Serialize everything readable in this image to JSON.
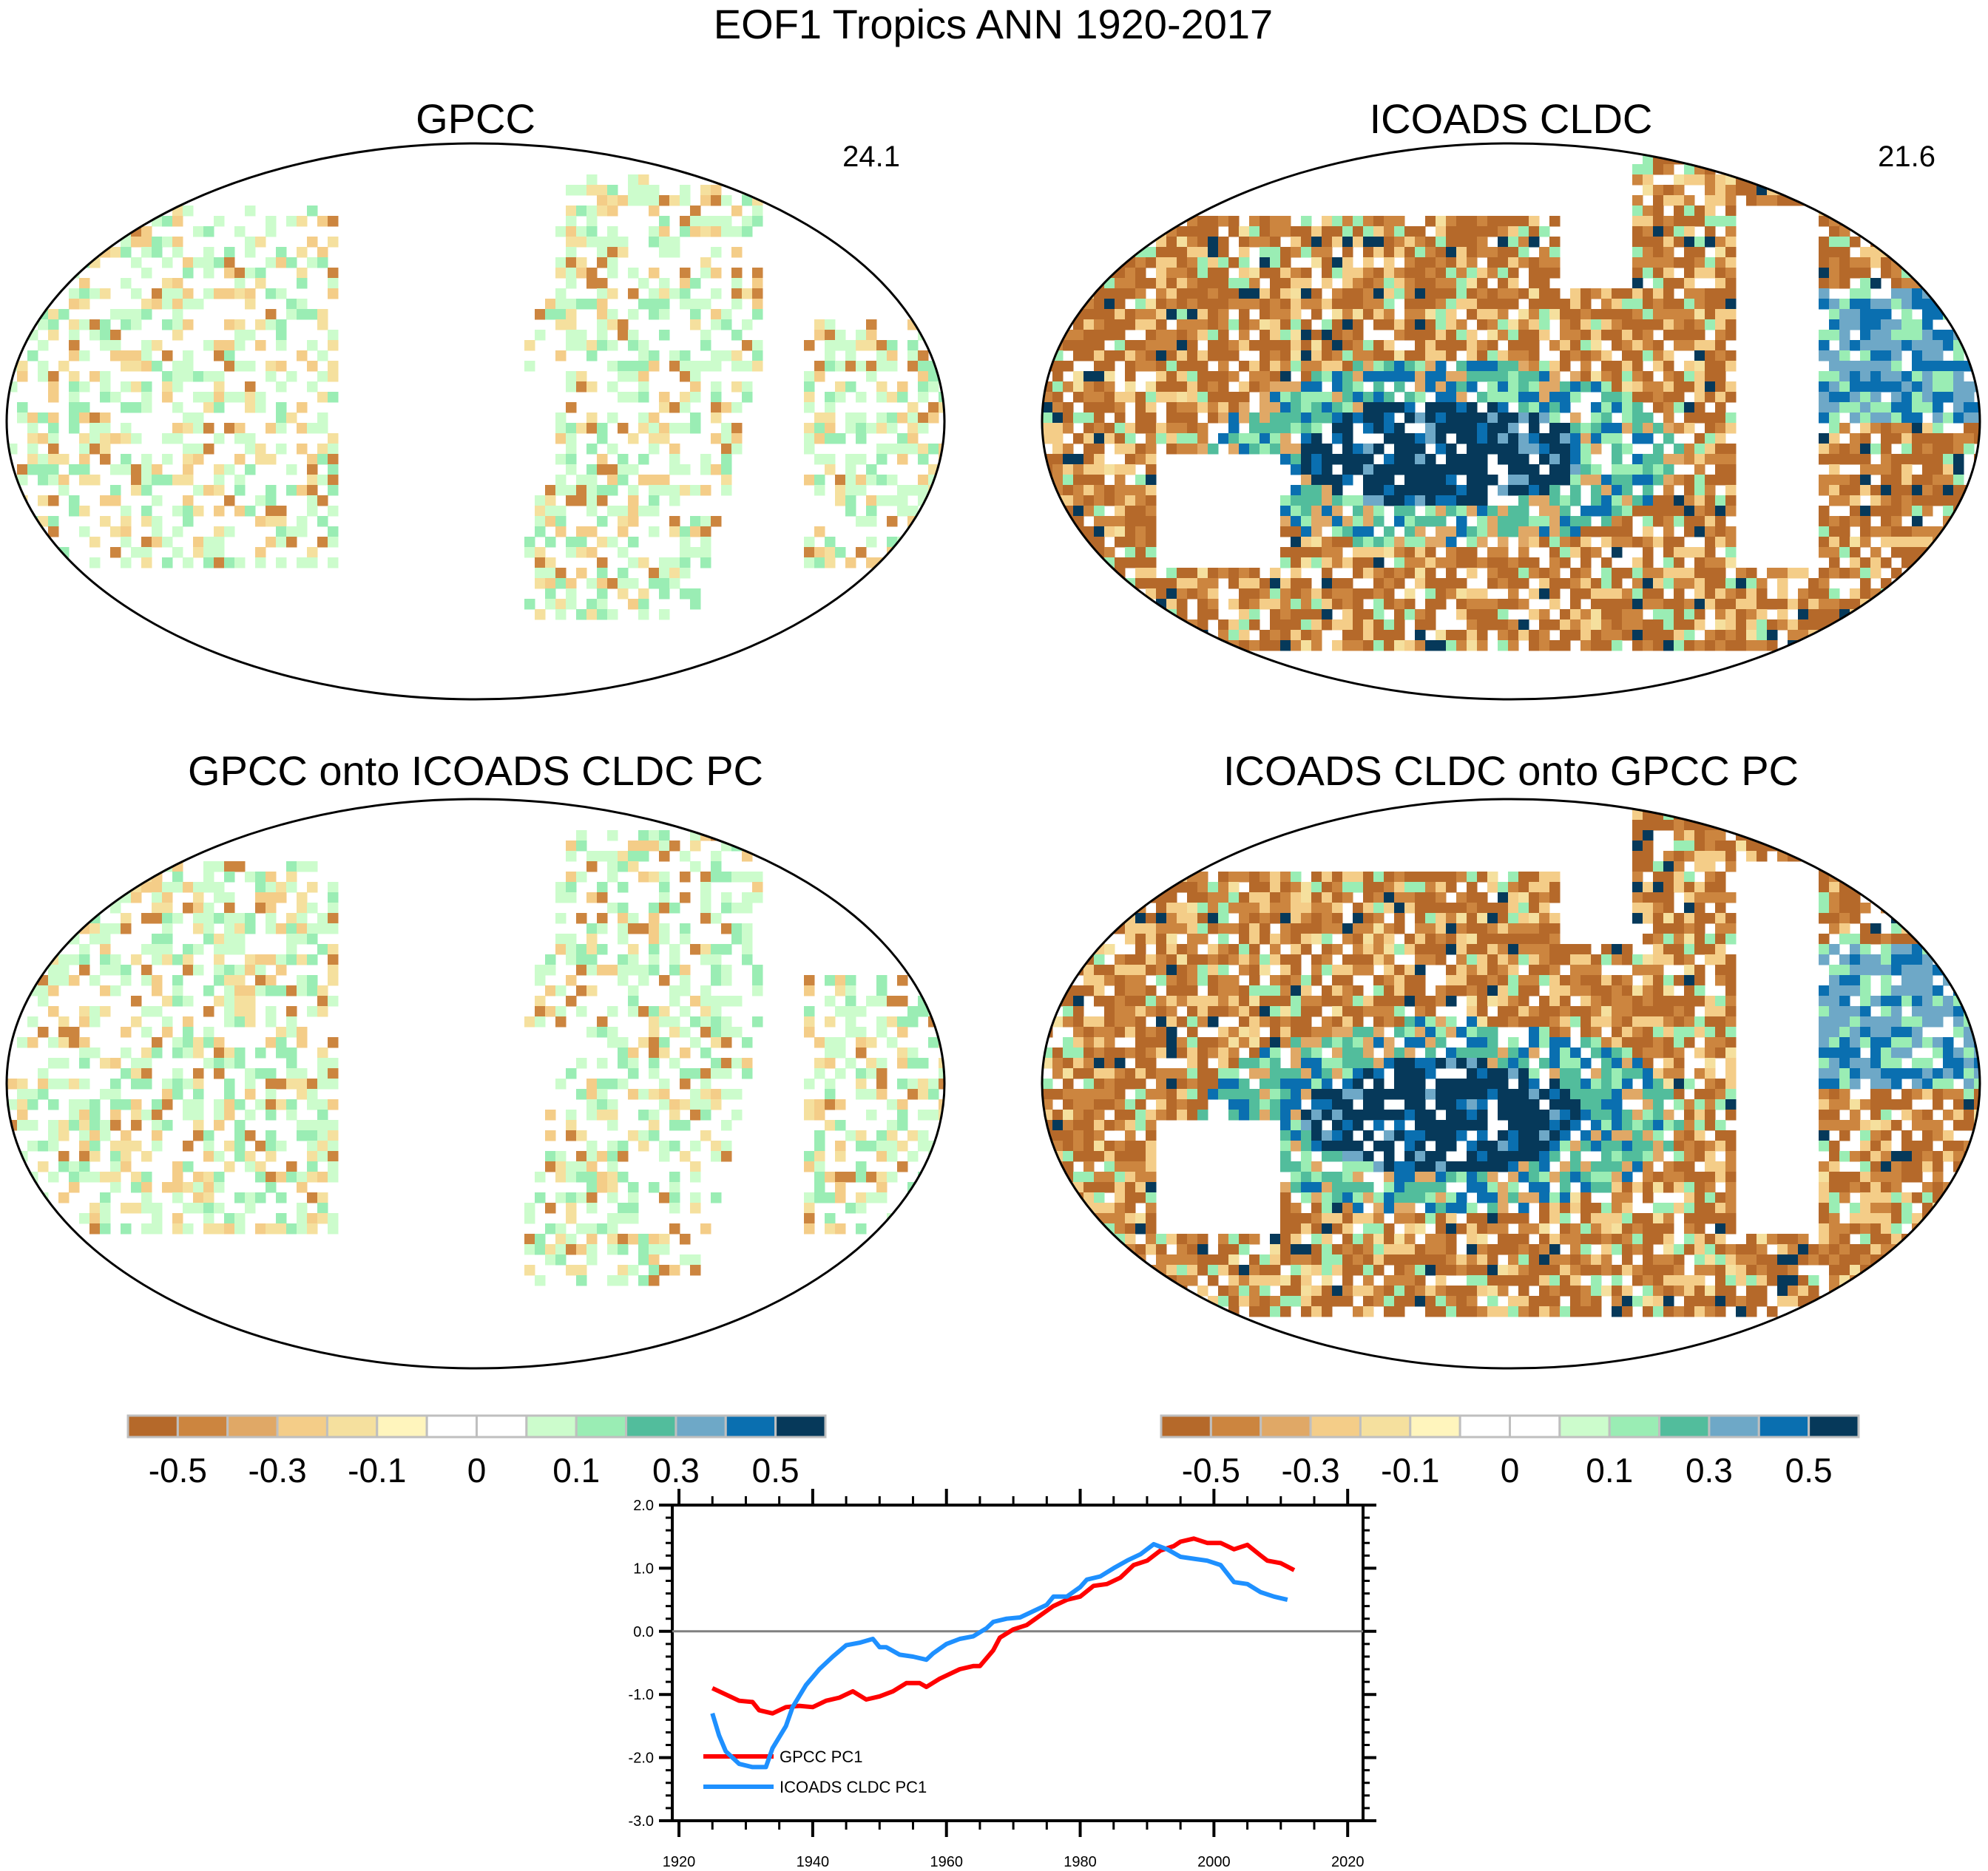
{
  "title": "EOF1 Tropics ANN 1920-2017",
  "panels": [
    {
      "title": "GPCC",
      "pct": "24.1",
      "kind": "land"
    },
    {
      "title": "ICOADS CLDC",
      "pct": "21.6",
      "kind": "ocean"
    },
    {
      "title": "GPCC onto ICOADS CLDC PC",
      "pct": "",
      "kind": "land"
    },
    {
      "title": "ICOADS CLDC onto GPCC PC",
      "pct": "",
      "kind": "ocean"
    }
  ],
  "colorbar": {
    "colors": [
      "#b5692a",
      "#cc853f",
      "#e0a866",
      "#f4cd88",
      "#f5e09e",
      "#fff5bd",
      "#ffffff",
      "#ffffff",
      "#ccfccc",
      "#9aedb4",
      "#52bd9c",
      "#6ea8c7",
      "#0a6fb0",
      "#06395a"
    ],
    "labels": [
      "-0.5",
      "-0.3",
      "-0.1",
      "0",
      "0.1",
      "0.3",
      "0.5"
    ]
  },
  "chart_data": {
    "type": "line",
    "title": "",
    "xlabel": "",
    "ylabel": "",
    "xlim": [
      1919,
      2022.3
    ],
    "ylim": [
      -3.0,
      2.0
    ],
    "xticks": [
      "1920",
      "1940",
      "1960",
      "1980",
      "2000",
      "2020"
    ],
    "yticks": [
      "2.0",
      "1.0",
      "0.0",
      "-1.0",
      "-2.0",
      "-3.0"
    ],
    "reference_line": 0.0,
    "legend_position": "bottom-left",
    "series": [
      {
        "name": "GPCC PC1",
        "color": "#ff0000",
        "x": [
          1925,
          1927,
          1929,
          1931,
          1932,
          1934,
          1936,
          1938,
          1940,
          1942,
          1944,
          1946,
          1948,
          1950,
          1952,
          1954,
          1956,
          1957,
          1959,
          1962,
          1964,
          1965,
          1967,
          1968,
          1970,
          1972,
          1974,
          1976,
          1978,
          1980,
          1982,
          1984,
          1986,
          1988,
          1990,
          1992,
          1994,
          1995,
          1997,
          1999,
          2001,
          2003,
          2005,
          2007,
          2008,
          2010,
          2012
        ],
        "y": [
          -0.9,
          -1.0,
          -1.1,
          -1.12,
          -1.25,
          -1.3,
          -1.2,
          -1.18,
          -1.2,
          -1.1,
          -1.05,
          -0.95,
          -1.08,
          -1.03,
          -0.95,
          -0.82,
          -0.82,
          -0.88,
          -0.75,
          -0.6,
          -0.55,
          -0.55,
          -0.3,
          -0.1,
          0.03,
          0.1,
          0.25,
          0.4,
          0.5,
          0.55,
          0.72,
          0.75,
          0.85,
          1.05,
          1.12,
          1.28,
          1.35,
          1.42,
          1.47,
          1.4,
          1.4,
          1.3,
          1.37,
          1.2,
          1.12,
          1.08,
          0.97
        ]
      },
      {
        "name": "ICOADS CLDC PC1",
        "color": "#1e90ff",
        "x": [
          1925,
          1926,
          1927,
          1929,
          1931,
          1933,
          1934,
          1936,
          1937,
          1939,
          1941,
          1943,
          1945,
          1947,
          1949,
          1950,
          1951,
          1953,
          1955,
          1957,
          1958,
          1960,
          1962,
          1964,
          1966,
          1967,
          1969,
          1971,
          1973,
          1975,
          1976,
          1978,
          1980,
          1981,
          1983,
          1985,
          1987,
          1989,
          1991,
          1993,
          1995,
          1997,
          1999,
          2001,
          2003,
          2005,
          2007,
          2009,
          2011
        ],
        "y": [
          -1.3,
          -1.65,
          -1.9,
          -2.1,
          -2.15,
          -2.15,
          -1.85,
          -1.5,
          -1.2,
          -0.85,
          -0.6,
          -0.4,
          -0.22,
          -0.18,
          -0.12,
          -0.25,
          -0.25,
          -0.37,
          -0.4,
          -0.45,
          -0.35,
          -0.2,
          -0.12,
          -0.08,
          0.05,
          0.15,
          0.2,
          0.22,
          0.32,
          0.42,
          0.55,
          0.55,
          0.7,
          0.82,
          0.87,
          1.0,
          1.12,
          1.22,
          1.38,
          1.3,
          1.18,
          1.15,
          1.12,
          1.05,
          0.78,
          0.75,
          0.62,
          0.55,
          0.5
        ]
      }
    ]
  }
}
